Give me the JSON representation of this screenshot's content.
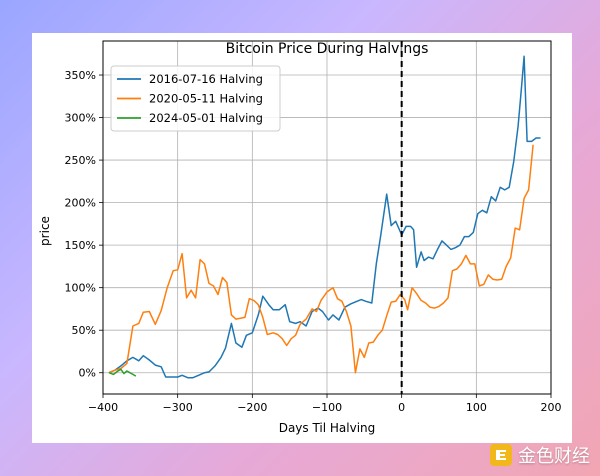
{
  "chart_data": {
    "type": "line",
    "title": "Bitcoin Price During Halvings",
    "xlabel": "Days Til Halving",
    "ylabel": "price",
    "xlim": [
      -400,
      200
    ],
    "ylim": [
      -25,
      390
    ],
    "x_ticks": [
      -400,
      -300,
      -200,
      -100,
      0,
      100,
      200
    ],
    "y_ticks": [
      0,
      50,
      100,
      150,
      200,
      250,
      300,
      350
    ],
    "y_tick_labels": [
      "0%",
      "50%",
      "100%",
      "150%",
      "200%",
      "250%",
      "300%",
      "350%"
    ],
    "grid": true,
    "legend_position": "top-left",
    "halving_marker_x": 0,
    "series": [
      {
        "name": "2016-07-16 Halving",
        "color": "#1f77b4",
        "points": [
          [
            -392,
            0
          ],
          [
            -384,
            3
          ],
          [
            -376,
            8
          ],
          [
            -368,
            14
          ],
          [
            -360,
            18
          ],
          [
            -352,
            14
          ],
          [
            -346,
            20
          ],
          [
            -338,
            15
          ],
          [
            -330,
            9
          ],
          [
            -322,
            7
          ],
          [
            -316,
            -5
          ],
          [
            -308,
            -5
          ],
          [
            -300,
            -5
          ],
          [
            -294,
            -3
          ],
          [
            -286,
            -6
          ],
          [
            -280,
            -6
          ],
          [
            -272,
            -3
          ],
          [
            -264,
            0
          ],
          [
            -258,
            1
          ],
          [
            -250,
            8
          ],
          [
            -242,
            18
          ],
          [
            -236,
            29
          ],
          [
            -228,
            58
          ],
          [
            -222,
            35
          ],
          [
            -214,
            30
          ],
          [
            -208,
            44
          ],
          [
            -200,
            47
          ],
          [
            -192,
            68
          ],
          [
            -186,
            90
          ],
          [
            -178,
            80
          ],
          [
            -172,
            74
          ],
          [
            -164,
            74
          ],
          [
            -156,
            80
          ],
          [
            -150,
            60
          ],
          [
            -142,
            58
          ],
          [
            -136,
            60
          ],
          [
            -128,
            55
          ],
          [
            -120,
            72
          ],
          [
            -112,
            76
          ],
          [
            -106,
            72
          ],
          [
            -98,
            62
          ],
          [
            -92,
            68
          ],
          [
            -84,
            62
          ],
          [
            -76,
            77
          ],
          [
            -68,
            81
          ],
          [
            -60,
            84
          ],
          [
            -54,
            86
          ],
          [
            -48,
            84
          ],
          [
            -40,
            82
          ],
          [
            -34,
            128
          ],
          [
            -28,
            162
          ],
          [
            -20,
            210
          ],
          [
            -14,
            173
          ],
          [
            -8,
            178
          ],
          [
            0,
            162
          ],
          [
            6,
            172
          ],
          [
            12,
            172
          ],
          [
            16,
            168
          ],
          [
            20,
            124
          ],
          [
            26,
            142
          ],
          [
            30,
            132
          ],
          [
            36,
            136
          ],
          [
            42,
            134
          ],
          [
            48,
            145
          ],
          [
            54,
            155
          ],
          [
            60,
            150
          ],
          [
            66,
            145
          ],
          [
            72,
            147
          ],
          [
            78,
            150
          ],
          [
            84,
            160
          ],
          [
            90,
            160
          ],
          [
            96,
            165
          ],
          [
            102,
            187
          ],
          [
            108,
            191
          ],
          [
            114,
            188
          ],
          [
            120,
            207
          ],
          [
            126,
            202
          ],
          [
            132,
            218
          ],
          [
            138,
            215
          ],
          [
            144,
            218
          ],
          [
            150,
            248
          ],
          [
            156,
            290
          ],
          [
            160,
            330
          ],
          [
            164,
            372
          ],
          [
            168,
            272
          ],
          [
            174,
            272
          ],
          [
            180,
            276
          ],
          [
            186,
            276
          ]
        ]
      },
      {
        "name": "2020-05-11 Halving",
        "color": "#ff7f0e",
        "points": [
          [
            -392,
            0
          ],
          [
            -384,
            3
          ],
          [
            -376,
            5
          ],
          [
            -368,
            11
          ],
          [
            -360,
            55
          ],
          [
            -352,
            58
          ],
          [
            -346,
            71
          ],
          [
            -338,
            72
          ],
          [
            -330,
            57
          ],
          [
            -322,
            73
          ],
          [
            -314,
            100
          ],
          [
            -306,
            120
          ],
          [
            -300,
            121
          ],
          [
            -294,
            140
          ],
          [
            -288,
            88
          ],
          [
            -282,
            97
          ],
          [
            -276,
            88
          ],
          [
            -270,
            133
          ],
          [
            -264,
            128
          ],
          [
            -258,
            105
          ],
          [
            -252,
            102
          ],
          [
            -246,
            92
          ],
          [
            -240,
            112
          ],
          [
            -234,
            106
          ],
          [
            -228,
            68
          ],
          [
            -222,
            63
          ],
          [
            -216,
            64
          ],
          [
            -210,
            65
          ],
          [
            -204,
            87
          ],
          [
            -198,
            85
          ],
          [
            -192,
            80
          ],
          [
            -186,
            65
          ],
          [
            -180,
            45
          ],
          [
            -172,
            47
          ],
          [
            -166,
            45
          ],
          [
            -160,
            40
          ],
          [
            -154,
            32
          ],
          [
            -148,
            40
          ],
          [
            -142,
            44
          ],
          [
            -136,
            57
          ],
          [
            -128,
            63
          ],
          [
            -120,
            75
          ],
          [
            -114,
            72
          ],
          [
            -108,
            85
          ],
          [
            -100,
            95
          ],
          [
            -92,
            100
          ],
          [
            -86,
            87
          ],
          [
            -80,
            84
          ],
          [
            -74,
            72
          ],
          [
            -68,
            55
          ],
          [
            -62,
            0
          ],
          [
            -56,
            28
          ],
          [
            -50,
            18
          ],
          [
            -44,
            35
          ],
          [
            -38,
            36
          ],
          [
            -32,
            44
          ],
          [
            -26,
            50
          ],
          [
            -20,
            67
          ],
          [
            -14,
            83
          ],
          [
            -8,
            84
          ],
          [
            -2,
            92
          ],
          [
            4,
            86
          ],
          [
            8,
            74
          ],
          [
            14,
            100
          ],
          [
            20,
            93
          ],
          [
            26,
            85
          ],
          [
            32,
            82
          ],
          [
            38,
            77
          ],
          [
            44,
            76
          ],
          [
            50,
            78
          ],
          [
            56,
            82
          ],
          [
            62,
            88
          ],
          [
            68,
            120
          ],
          [
            74,
            122
          ],
          [
            80,
            128
          ],
          [
            86,
            138
          ],
          [
            92,
            128
          ],
          [
            98,
            128
          ],
          [
            104,
            102
          ],
          [
            110,
            104
          ],
          [
            116,
            115
          ],
          [
            122,
            110
          ],
          [
            128,
            109
          ],
          [
            134,
            110
          ],
          [
            140,
            125
          ],
          [
            146,
            135
          ],
          [
            152,
            170
          ],
          [
            158,
            168
          ],
          [
            164,
            205
          ],
          [
            170,
            215
          ],
          [
            176,
            268
          ]
        ]
      },
      {
        "name": "2024-05-01 Halving",
        "color": "#2ca02c",
        "points": [
          [
            -392,
            0
          ],
          [
            -386,
            -2
          ],
          [
            -380,
            2
          ],
          [
            -376,
            4
          ],
          [
            -372,
            -1
          ],
          [
            -368,
            2
          ],
          [
            -364,
            0
          ],
          [
            -360,
            -2
          ],
          [
            -356,
            -4
          ]
        ]
      }
    ]
  },
  "watermark": {
    "text": "金色财经",
    "icon": "gold-coin-logo-icon"
  }
}
